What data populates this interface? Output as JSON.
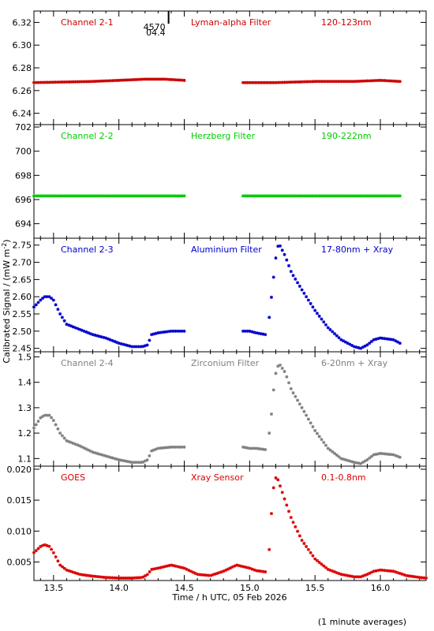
{
  "chart_data": {
    "type": "scatter",
    "xlabel": "Time / h UTC, 05 Feb 2026",
    "ylabel": "Calibrated Signal / (mW m",
    "ylabel_sup": "-2",
    "ylabel_end": ")",
    "footer": "(1 minute averages)",
    "xlim": [
      13.35,
      16.35
    ],
    "xticks": [
      "13.5",
      "14.0",
      "14.5",
      "15.0",
      "15.5",
      "16.0"
    ],
    "marker": {
      "label": "4570",
      "sublabel": "04.4",
      "x": 14.38
    },
    "panels": [
      {
        "name": "Channel 2-1",
        "filter": "Lyman-alpha Filter",
        "band": "120-123nm",
        "color": "#cc0000",
        "ylim": [
          6.23,
          6.33
        ],
        "yticks": [
          "6.24",
          "6.26",
          "6.28",
          "6.30",
          "6.32"
        ],
        "segments": [
          {
            "x": [
              13.35,
              13.8,
              14.0,
              14.2,
              14.35,
              14.5
            ],
            "y": [
              6.267,
              6.268,
              6.269,
              6.27,
              6.27,
              6.269
            ]
          },
          {
            "x": [
              14.95,
              15.2,
              15.5,
              15.8,
              16.0,
              16.15
            ],
            "y": [
              6.267,
              6.267,
              6.268,
              6.268,
              6.269,
              6.268
            ]
          }
        ]
      },
      {
        "name": "Channel 2-2",
        "filter": "Herzberg Filter",
        "band": "190-222nm",
        "color": "#00cc00",
        "ylim": [
          692.8,
          702.2
        ],
        "yticks": [
          "694",
          "696",
          "698",
          "700",
          "702"
        ],
        "segments": [
          {
            "x": [
              13.35,
              13.8,
              14.2,
              14.5
            ],
            "y": [
              696.3,
              696.3,
              696.3,
              696.3
            ]
          },
          {
            "x": [
              14.95,
              15.4,
              15.8,
              16.15
            ],
            "y": [
              696.3,
              696.3,
              696.3,
              696.3
            ]
          }
        ]
      },
      {
        "name": "Channel 2-3",
        "filter": "Aluminium Filter",
        "band": "17-80nm + Xray",
        "color": "#0000cc",
        "ylim": [
          2.44,
          2.77
        ],
        "yticks": [
          "2.45",
          "2.50",
          "2.55",
          "2.60",
          "2.65",
          "2.70",
          "2.75"
        ],
        "segments": [
          {
            "x": [
              13.35,
              13.4,
              13.43,
              13.47,
              13.5,
              13.55,
              13.6,
              13.7,
              13.8,
              13.9,
              14.0,
              14.1,
              14.18,
              14.22,
              14.25,
              14.3,
              14.4,
              14.5
            ],
            "y": [
              2.57,
              2.59,
              2.6,
              2.6,
              2.59,
              2.55,
              2.52,
              2.505,
              2.49,
              2.48,
              2.465,
              2.455,
              2.455,
              2.46,
              2.49,
              2.495,
              2.5,
              2.5
            ]
          },
          {
            "x": [
              14.95,
              15.0,
              15.05,
              15.12
            ],
            "y": [
              2.5,
              2.5,
              2.495,
              2.49
            ]
          },
          {
            "x": [
              15.15,
              15.17,
              15.19,
              15.21,
              15.23,
              15.27,
              15.32,
              15.4,
              15.5,
              15.6,
              15.7,
              15.8,
              15.85,
              15.9,
              15.95,
              16.0,
              16.1,
              16.15
            ],
            "y": [
              2.54,
              2.61,
              2.68,
              2.745,
              2.75,
              2.72,
              2.67,
              2.62,
              2.56,
              2.51,
              2.475,
              2.455,
              2.45,
              2.46,
              2.475,
              2.48,
              2.475,
              2.465
            ]
          }
        ]
      },
      {
        "name": "Channel 2-4",
        "filter": "Zirconium Filter",
        "band": "6-20nm + Xray",
        "color": "#808080",
        "ylim": [
          1.07,
          1.52
        ],
        "yticks": [
          "1.1",
          "1.2",
          "1.3",
          "1.4",
          "1.5"
        ],
        "segments": [
          {
            "x": [
              13.35,
              13.4,
              13.43,
              13.47,
              13.5,
              13.55,
              13.6,
              13.7,
              13.8,
              13.9,
              14.0,
              14.1,
              14.18,
              14.22,
              14.25,
              14.3,
              14.4,
              14.5
            ],
            "y": [
              1.22,
              1.26,
              1.27,
              1.27,
              1.25,
              1.2,
              1.17,
              1.15,
              1.125,
              1.11,
              1.095,
              1.085,
              1.085,
              1.095,
              1.13,
              1.14,
              1.145,
              1.145
            ]
          },
          {
            "x": [
              14.95,
              15.0,
              15.05,
              15.12
            ],
            "y": [
              1.145,
              1.14,
              1.14,
              1.135
            ]
          },
          {
            "x": [
              15.15,
              15.17,
              15.19,
              15.21,
              15.23,
              15.27,
              15.32,
              15.4,
              15.5,
              15.6,
              15.7,
              15.8,
              15.85,
              15.9,
              15.95,
              16.0,
              16.1,
              16.15
            ],
            "y": [
              1.2,
              1.29,
              1.41,
              1.46,
              1.47,
              1.44,
              1.37,
              1.3,
              1.21,
              1.14,
              1.1,
              1.085,
              1.08,
              1.095,
              1.115,
              1.12,
              1.115,
              1.105
            ]
          }
        ]
      },
      {
        "name": "GOES",
        "filter": "Xray Sensor",
        "band": "0.1-0.8nm",
        "color": "#dd0000",
        "ylim": [
          0.002,
          0.0205
        ],
        "yticks": [
          "0.005",
          "0.010",
          "0.015",
          "0.020"
        ],
        "segments": [
          {
            "x": [
              13.35,
              13.4,
              13.43,
              13.47,
              13.5,
              13.55,
              13.6,
              13.7,
              13.8,
              13.9,
              14.0,
              14.1,
              14.18,
              14.22,
              14.25,
              14.3,
              14.4,
              14.5,
              14.6,
              14.7,
              14.8,
              14.9,
              15.0,
              15.05,
              15.12
            ],
            "y": [
              0.0065,
              0.0075,
              0.0078,
              0.0075,
              0.0065,
              0.0045,
              0.0037,
              0.003,
              0.0027,
              0.0025,
              0.0024,
              0.0024,
              0.0025,
              0.003,
              0.0038,
              0.004,
              0.0045,
              0.004,
              0.003,
              0.0028,
              0.0035,
              0.0045,
              0.004,
              0.0036,
              0.0034
            ]
          },
          {
            "x": [
              15.15,
              15.17,
              15.19,
              15.21,
              15.23,
              15.27,
              15.32,
              15.4,
              15.5,
              15.6,
              15.7,
              15.8,
              15.85,
              15.9,
              15.95,
              16.0,
              16.1,
              16.2,
              16.3,
              16.35
            ],
            "y": [
              0.007,
              0.014,
              0.0185,
              0.0187,
              0.0175,
              0.015,
              0.012,
              0.0085,
              0.0055,
              0.0038,
              0.003,
              0.0026,
              0.0026,
              0.003,
              0.0035,
              0.0037,
              0.0035,
              0.0028,
              0.0025,
              0.0024
            ]
          }
        ]
      }
    ]
  }
}
